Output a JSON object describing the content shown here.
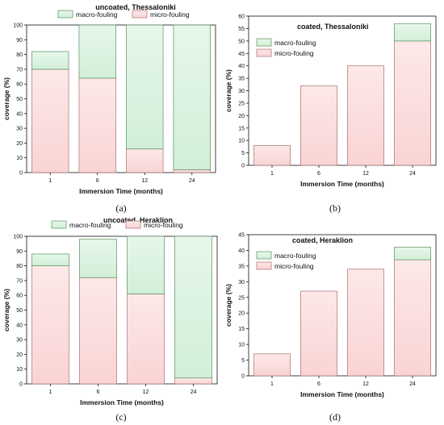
{
  "colors": {
    "micro_fill": "#fce0e0",
    "micro_stroke": "#b07070",
    "macro_fill": "#dff5e3",
    "macro_stroke": "#5c8f5c",
    "axis": "#111111"
  },
  "chart_data": [
    {
      "type": "bar",
      "stacked": true,
      "title": "uncoated, Thessaloniki",
      "caption": "(a)",
      "xlabel": "Immersion Time (months)",
      "ylabel": "coverage (%)",
      "categories": [
        "1",
        "6",
        "12",
        "24"
      ],
      "ylim": [
        0,
        100
      ],
      "yticks": [
        0,
        10,
        20,
        30,
        40,
        50,
        60,
        70,
        80,
        90,
        100
      ],
      "legend_position": "top",
      "series": [
        {
          "name": "micro-fouling",
          "values": [
            70,
            64,
            16,
            2
          ]
        },
        {
          "name": "macro-fouling",
          "values": [
            12,
            36,
            84,
            98
          ]
        }
      ]
    },
    {
      "type": "bar",
      "stacked": true,
      "title": "coated, Thessaloniki",
      "caption": "(b)",
      "xlabel": "Immersion Time (months)",
      "ylabel": "coverage (%)",
      "categories": [
        "1",
        "6",
        "12",
        "24"
      ],
      "ylim": [
        0,
        60
      ],
      "yticks": [
        0,
        5,
        10,
        15,
        20,
        25,
        30,
        35,
        40,
        45,
        50,
        55,
        60
      ],
      "legend_position": "top-left",
      "series": [
        {
          "name": "micro-fouling",
          "values": [
            8,
            32,
            40,
            50
          ]
        },
        {
          "name": "macro-fouling",
          "values": [
            0,
            0,
            0,
            7
          ]
        }
      ]
    },
    {
      "type": "bar",
      "stacked": true,
      "title": "uncoated, Heraklion",
      "caption": "(c)",
      "xlabel": "Immersion Time (months)",
      "ylabel": "coverage (%)",
      "categories": [
        "1",
        "6",
        "12",
        "24"
      ],
      "ylim": [
        0,
        100
      ],
      "yticks": [
        0,
        10,
        20,
        30,
        40,
        50,
        60,
        70,
        80,
        90,
        100
      ],
      "legend_position": "top",
      "series": [
        {
          "name": "micro-fouling",
          "values": [
            80,
            72,
            61,
            4
          ]
        },
        {
          "name": "macro-fouling",
          "values": [
            8,
            26,
            39,
            96
          ]
        }
      ]
    },
    {
      "type": "bar",
      "stacked": true,
      "title": "coated, Heraklion",
      "caption": "(d)",
      "xlabel": "Immersion Time (months)",
      "ylabel": "coverage (%)",
      "categories": [
        "1",
        "6",
        "12",
        "24"
      ],
      "ylim": [
        0,
        45
      ],
      "yticks": [
        0,
        5,
        10,
        15,
        20,
        25,
        30,
        35,
        40,
        45
      ],
      "legend_position": "top-left",
      "series": [
        {
          "name": "micro-fouling",
          "values": [
            7,
            27,
            34,
            37
          ]
        },
        {
          "name": "macro-fouling",
          "values": [
            0,
            0,
            0,
            4
          ]
        }
      ]
    }
  ]
}
